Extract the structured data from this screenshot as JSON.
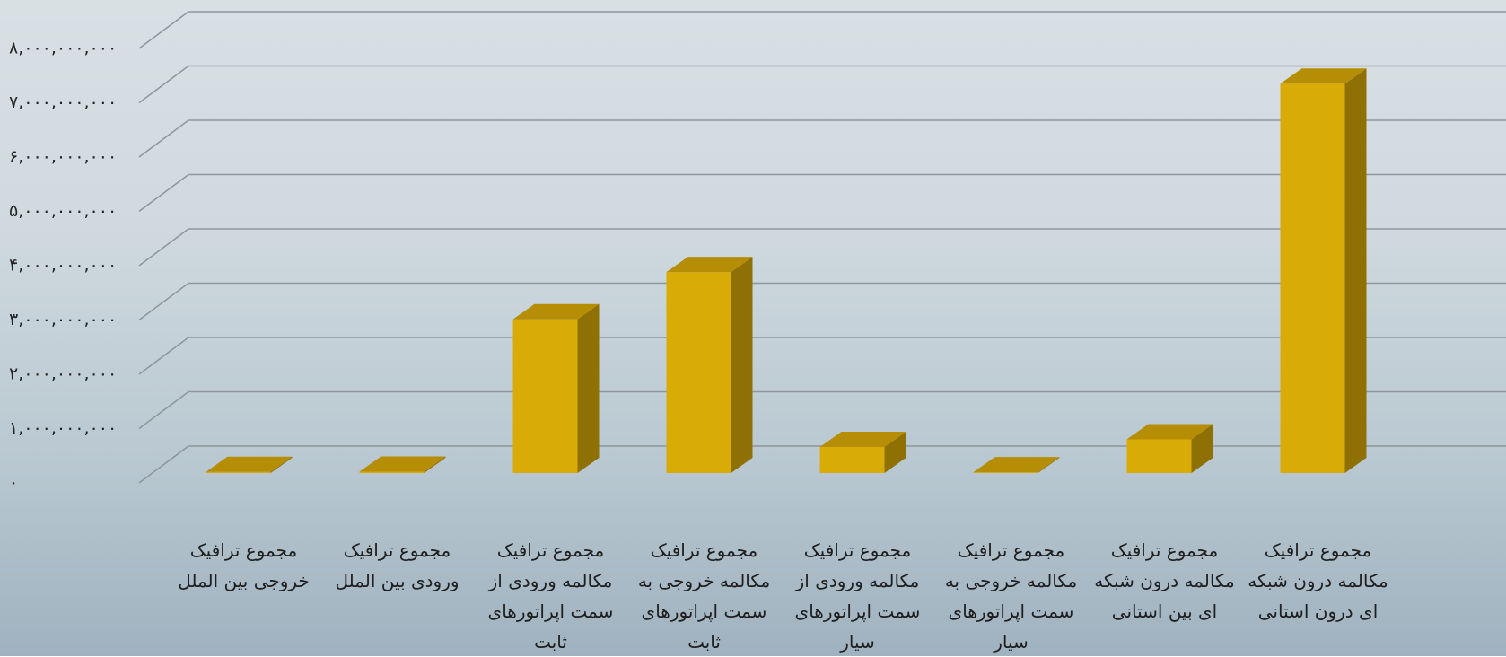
{
  "chart_data": {
    "type": "bar",
    "categories": [
      "مجموع ترافیک خروجی بین الملل",
      "مجموع ترافیک ورودی بین الملل",
      "مجموع ترافیک مکالمه ورودی از سمت اپراتورهای ثابت",
      "مجموع ترافیک مکالمه خروجی به سمت اپراتورهای ثابت",
      "مجموع ترافیک مکالمه ورودی از سمت اپراتورهای سیار",
      "مجموع ترافیک مکالمه خروجی به سمت اپراتورهای سیار",
      "مجموع ترافیک مکالمه درون شبکه ای بین استانی",
      "مجموع ترافیک مکالمه درون شبکه ای درون استانی"
    ],
    "values": [
      20000000,
      25000000,
      2830000000,
      3700000000,
      480000000,
      15000000,
      620000000,
      7170000000
    ],
    "color": "#d9ab07",
    "ylim": [
      0,
      8500000000
    ],
    "yticks": [
      {
        "value": 0,
        "label": "۰"
      },
      {
        "value": 1000000000,
        "label": "۱,۰۰۰,۰۰۰,۰۰۰"
      },
      {
        "value": 2000000000,
        "label": "۲,۰۰۰,۰۰۰,۰۰۰"
      },
      {
        "value": 3000000000,
        "label": "۳,۰۰۰,۰۰۰,۰۰۰"
      },
      {
        "value": 4000000000,
        "label": "۴,۰۰۰,۰۰۰,۰۰۰"
      },
      {
        "value": 5000000000,
        "label": "۵,۰۰۰,۰۰۰,۰۰۰"
      },
      {
        "value": 6000000000,
        "label": "۶,۰۰۰,۰۰۰,۰۰۰"
      },
      {
        "value": 7000000000,
        "label": "۷,۰۰۰,۰۰۰,۰۰۰"
      },
      {
        "value": 8000000000,
        "label": "۸,۰۰۰,۰۰۰,۰۰۰"
      }
    ],
    "grid": true
  }
}
